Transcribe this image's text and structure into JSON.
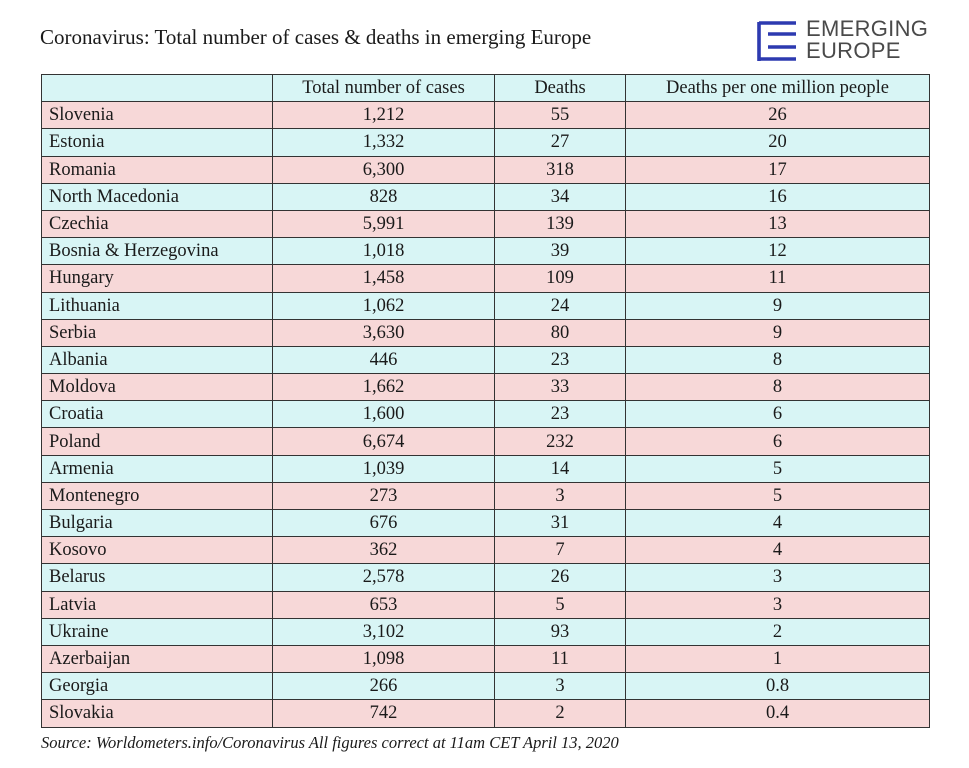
{
  "title": "Coronavirus: Total number of cases & deaths in emerging Europe",
  "logo": {
    "line1": "EMERGING",
    "line2": "EUROPE",
    "icon": "emerging-europe-e-icon",
    "color": "#2d3ab0"
  },
  "colors": {
    "header_row": "#d8f5f5",
    "row_pink": "#f7d8d8",
    "row_cyan": "#d8f5f5",
    "border": "#333333"
  },
  "chart_data": {
    "type": "table",
    "title": "Coronavirus: Total number of cases & deaths in emerging Europe",
    "columns": [
      "",
      "Total number of cases",
      "Deaths",
      "Deaths per one million people"
    ],
    "rows": [
      [
        "Slovenia",
        "1,212",
        "55",
        "26"
      ],
      [
        "Estonia",
        "1,332",
        "27",
        "20"
      ],
      [
        "Romania",
        "6,300",
        "318",
        "17"
      ],
      [
        "North Macedonia",
        "828",
        "34",
        "16"
      ],
      [
        "Czechia",
        "5,991",
        "139",
        "13"
      ],
      [
        "Bosnia & Herzegovina",
        "1,018",
        "39",
        "12"
      ],
      [
        "Hungary",
        "1,458",
        "109",
        "11"
      ],
      [
        "Lithuania",
        "1,062",
        "24",
        "9"
      ],
      [
        "Serbia",
        "3,630",
        "80",
        "9"
      ],
      [
        "Albania",
        "446",
        "23",
        "8"
      ],
      [
        "Moldova",
        "1,662",
        "33",
        "8"
      ],
      [
        "Croatia",
        "1,600",
        "23",
        "6"
      ],
      [
        "Poland",
        "6,674",
        "232",
        "6"
      ],
      [
        "Armenia",
        "1,039",
        "14",
        "5"
      ],
      [
        "Montenegro",
        "273",
        "3",
        "5"
      ],
      [
        "Bulgaria",
        "676",
        "31",
        "4"
      ],
      [
        "Kosovo",
        "362",
        "7",
        "4"
      ],
      [
        "Belarus",
        "2,578",
        "26",
        "3"
      ],
      [
        "Latvia",
        "653",
        "5",
        "3"
      ],
      [
        "Ukraine",
        "3,102",
        "93",
        "2"
      ],
      [
        "Azerbaijan",
        "1,098",
        "11",
        "1"
      ],
      [
        "Georgia",
        "266",
        "3",
        "0.8"
      ],
      [
        "Slovakia",
        "742",
        "2",
        "0.4"
      ]
    ]
  },
  "source": "Source: Worldometers.info/Coronavirus All figures correct at 11am CET April 13, 2020"
}
